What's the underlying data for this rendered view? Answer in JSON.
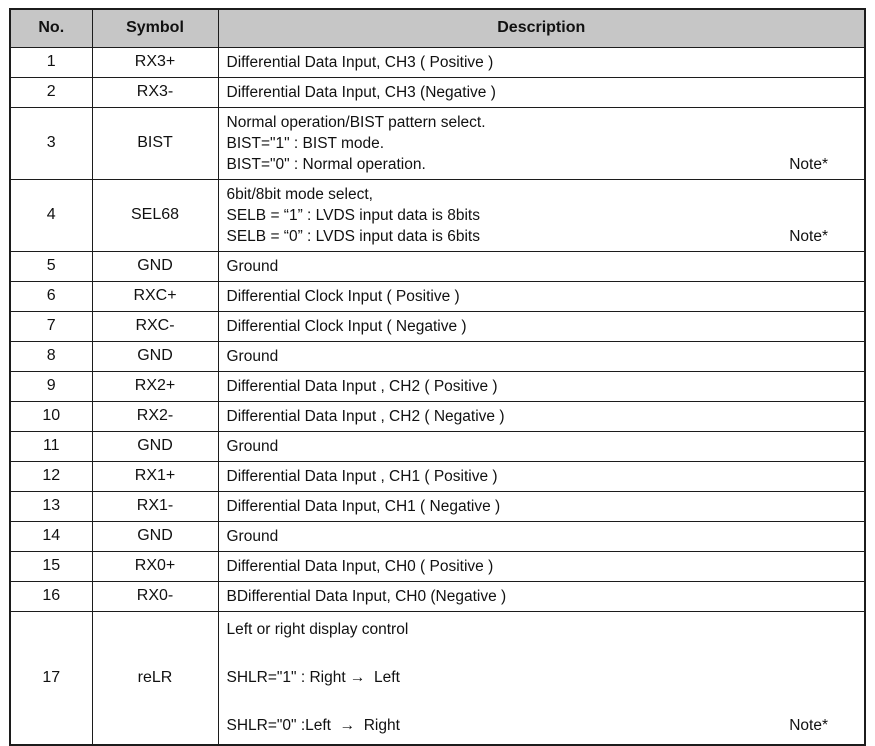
{
  "table": {
    "header_bg": "#c6c6c6",
    "border_color": "#1c1c1c",
    "header": {
      "no": "No.",
      "symbol": "Symbol",
      "description": "Description"
    },
    "rows": [
      {
        "no": "1",
        "symbol": "RX3+",
        "description": [
          {
            "text": "Differential Data Input, CH3 ( Positive )"
          }
        ]
      },
      {
        "no": "2",
        "symbol": "RX3-",
        "description": [
          {
            "text": "Differential Data Input, CH3 (Negative )"
          }
        ]
      },
      {
        "no": "3",
        "symbol": "BIST",
        "description": [
          {
            "text": "Normal operation/BIST pattern select."
          },
          {
            "text": "BIST=\"1\" : BIST mode."
          },
          {
            "text": "BIST=\"0\" : Normal operation.",
            "note": "Note*"
          }
        ]
      },
      {
        "no": "4",
        "symbol": "SEL68",
        "description": [
          {
            "text": "6bit/8bit mode select,"
          },
          {
            "text": "SELB = “1” : LVDS input data is 8bits"
          },
          {
            "text": "SELB = “0” : LVDS input data is 6bits",
            "note": "Note*"
          }
        ]
      },
      {
        "no": "5",
        "symbol": "GND",
        "description": [
          {
            "text": "Ground"
          }
        ]
      },
      {
        "no": "6",
        "symbol": "RXC+",
        "description": [
          {
            "text": "Differential Clock Input ( Positive )"
          }
        ]
      },
      {
        "no": "7",
        "symbol": "RXC-",
        "description": [
          {
            "text": "Differential Clock Input ( Negative )"
          }
        ]
      },
      {
        "no": "8",
        "symbol": "GND",
        "description": [
          {
            "text": "Ground"
          }
        ]
      },
      {
        "no": "9",
        "symbol": "RX2+",
        "description": [
          {
            "text": "Differential Data Input , CH2 ( Positive )"
          }
        ]
      },
      {
        "no": "10",
        "symbol": "RX2-",
        "description": [
          {
            "text": "Differential Data Input , CH2 ( Negative )"
          }
        ]
      },
      {
        "no": "11",
        "symbol": "GND",
        "description": [
          {
            "text": "Ground"
          }
        ]
      },
      {
        "no": "12",
        "symbol": "RX1+",
        "description": [
          {
            "text": "Differential Data Input , CH1 ( Positive )"
          }
        ]
      },
      {
        "no": "13",
        "symbol": "RX1-",
        "description": [
          {
            "text": "Differential Data Input, CH1 ( Negative )"
          }
        ]
      },
      {
        "no": "14",
        "symbol": "GND",
        "description": [
          {
            "text": "Ground"
          }
        ]
      },
      {
        "no": "15",
        "symbol": "RX0+",
        "description": [
          {
            "text": "Differential Data Input, CH0 ( Positive )"
          }
        ]
      },
      {
        "no": "16",
        "symbol": "RX0-",
        "description": [
          {
            "text": "BDifferential Data Input, CH0 (Negative )"
          }
        ]
      },
      {
        "no": "17",
        "symbol": "reLR",
        "description": [
          {
            "text": "Left or right display control"
          },
          {
            "text": ""
          },
          {
            "text": "SHLR=\"1\" : Right →  Left"
          },
          {
            "text": ""
          },
          {
            "text": "SHLR=\"0\" :Left  →  Right",
            "note": "Note*"
          }
        ]
      }
    ]
  }
}
